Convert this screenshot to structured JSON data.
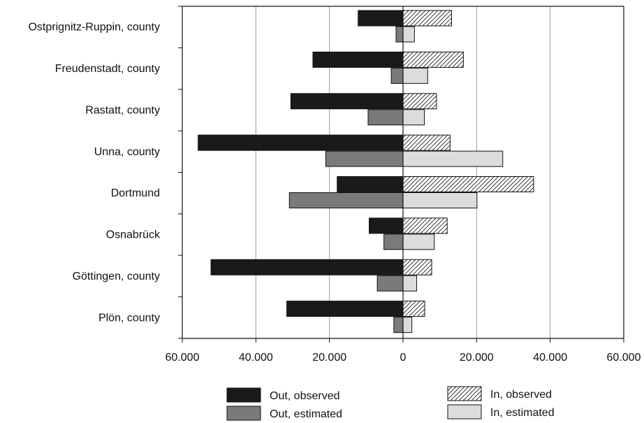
{
  "chart_data": {
    "type": "bar",
    "orientation": "horizontal",
    "layout": "diverging",
    "categories": [
      "Ostprignitz-Ruppin, county",
      "Freudenstadt, county",
      "Rastatt, county",
      "Unna, county",
      "Dortmund",
      "Osnabrück",
      "Göttingen, county",
      "Plön, county"
    ],
    "series": [
      {
        "name": "Out, observed",
        "side": "left",
        "fill": "#1a1a1a",
        "values": [
          12200,
          24500,
          30500,
          55700,
          17900,
          9200,
          52200,
          31600
        ]
      },
      {
        "name": "Out, estimated",
        "side": "left",
        "fill": "#7a7a7a",
        "values": [
          1900,
          3200,
          9500,
          21000,
          30900,
          5200,
          7000,
          2500
        ]
      },
      {
        "name": "In, observed",
        "side": "right",
        "fill": "hatch",
        "values": [
          13200,
          16400,
          9100,
          12800,
          35500,
          12000,
          7800,
          5900
        ]
      },
      {
        "name": "In, estimated",
        "side": "right",
        "fill": "#dcdcdc",
        "values": [
          3100,
          6700,
          5800,
          27100,
          20100,
          8500,
          3700,
          2400
        ]
      }
    ],
    "x_range": [
      -60000,
      60000
    ],
    "x_ticks": [
      -60000,
      -40000,
      -20000,
      0,
      20000,
      40000,
      60000
    ],
    "x_tick_labels": [
      "60.000",
      "40.000",
      "20.000",
      "0",
      "20.000",
      "40.000",
      "60.000"
    ],
    "grid": "vertical",
    "legend": "bottom"
  }
}
